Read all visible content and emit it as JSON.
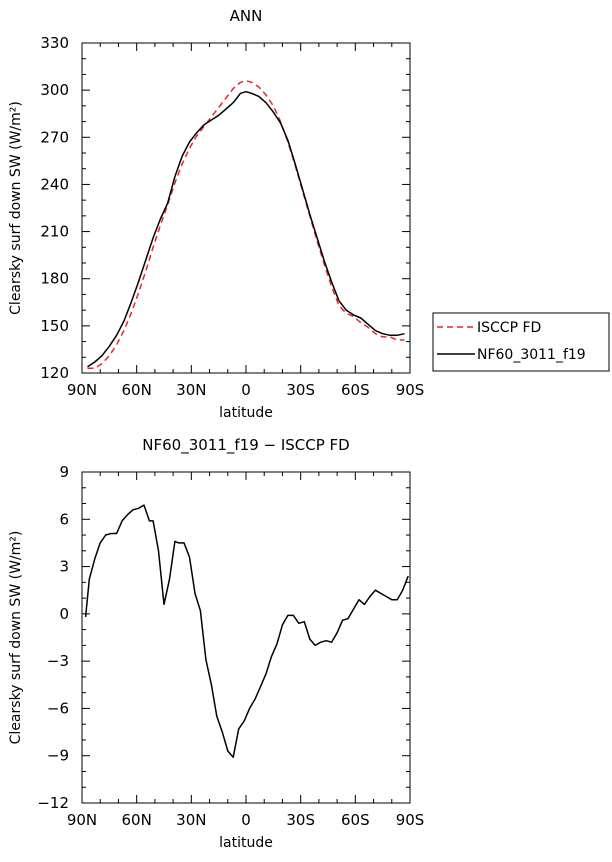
{
  "chart_data": [
    {
      "type": "line",
      "title": "ANN",
      "xlabel": "latitude",
      "ylabel": "Clearsky surf down SW (W/m²)",
      "xlim": [
        90,
        -90
      ],
      "ylim": [
        120,
        330
      ],
      "xticks": [
        90,
        60,
        30,
        0,
        -30,
        -60,
        -90
      ],
      "xtick_labels": [
        "90N",
        "60N",
        "30N",
        "0",
        "30S",
        "60S",
        "90S"
      ],
      "yticks": [
        120,
        150,
        180,
        210,
        240,
        270,
        300,
        330
      ],
      "ytick_labels": [
        "120",
        "150",
        "180",
        "210",
        "240",
        "270",
        "300",
        "330"
      ],
      "legend_position": "outside-right",
      "series": [
        {
          "name": "ISCCP FD",
          "color": "#e8262a",
          "dash": "dashed",
          "x": [
            87,
            83,
            79,
            75,
            71,
            67,
            63,
            59,
            55,
            51,
            47,
            43,
            39,
            35,
            31,
            27,
            23,
            19,
            15,
            11,
            7,
            3,
            0,
            -3,
            -7,
            -11,
            -15,
            -19,
            -23,
            -27,
            -31,
            -35,
            -39,
            -43,
            -47,
            -51,
            -55,
            -59,
            -63,
            -67,
            -71,
            -75,
            -79,
            -83,
            -87
          ],
          "y": [
            123,
            123,
            126,
            131,
            138,
            147,
            158,
            171,
            185,
            200,
            214,
            227,
            241,
            253,
            263,
            271,
            277,
            283,
            289,
            295,
            301,
            305,
            306,
            305,
            302,
            297,
            290,
            280,
            267,
            252,
            236,
            220,
            204,
            189,
            175,
            163,
            158,
            156,
            152,
            149,
            145,
            143,
            143,
            141,
            141
          ]
        },
        {
          "name": "NF60_3011_f19",
          "color": "#000000",
          "dash": "solid",
          "x": [
            87,
            83,
            79,
            75,
            71,
            67,
            63,
            59,
            55,
            51,
            47,
            43,
            39,
            35,
            31,
            27,
            23,
            19,
            15,
            11,
            7,
            3,
            0,
            -3,
            -7,
            -11,
            -15,
            -19,
            -23,
            -27,
            -31,
            -35,
            -39,
            -43,
            -47,
            -51,
            -55,
            -59,
            -63,
            -67,
            -71,
            -75,
            -79,
            -83,
            -87
          ],
          "y": [
            124,
            127,
            131,
            137,
            144,
            153,
            165,
            178,
            192,
            206,
            218,
            228,
            245,
            258,
            267,
            273,
            278,
            281,
            284,
            288,
            292,
            298,
            299,
            298,
            296,
            292,
            286,
            279,
            268,
            253,
            237,
            221,
            206,
            191,
            178,
            166,
            160,
            157,
            155,
            151,
            147,
            145,
            144,
            144,
            145
          ]
        }
      ]
    },
    {
      "type": "line",
      "title": "NF60_3011_f19 − ISCCP FD",
      "xlabel": "latitude",
      "ylabel": "Clearsky surf down SW (W/m²)",
      "xlim": [
        90,
        -90
      ],
      "ylim": [
        -12,
        9
      ],
      "xticks": [
        90,
        60,
        30,
        0,
        -30,
        -60,
        -90
      ],
      "xtick_labels": [
        "90N",
        "60N",
        "30N",
        "0",
        "30S",
        "60S",
        "90S"
      ],
      "yticks": [
        -12,
        -9,
        -6,
        -3,
        0,
        3,
        6,
        9
      ],
      "ytick_labels": [
        "−12",
        "−9",
        "−6",
        "−3",
        "0",
        "3",
        "6",
        "9"
      ],
      "series": [
        {
          "color": "#000000",
          "dash": "solid",
          "x": [
            88,
            86,
            83,
            80,
            77,
            74,
            71,
            68,
            65,
            62,
            59,
            56,
            53,
            51,
            48,
            45,
            42,
            39,
            37,
            34,
            31,
            28,
            25,
            22,
            19,
            16,
            13,
            10,
            7,
            4,
            1,
            -2,
            -5,
            -8,
            -11,
            -14,
            -17,
            -20,
            -23,
            -26,
            -29,
            -32,
            -35,
            -38,
            -41,
            -44,
            -47,
            -50,
            -53,
            -56,
            -59,
            -62,
            -65,
            -68,
            -71,
            -74,
            -77,
            -80,
            -83,
            -86,
            -89
          ],
          "y": [
            -0.2,
            2.2,
            3.5,
            4.5,
            5.0,
            5.1,
            5.1,
            5.9,
            6.3,
            6.6,
            6.7,
            6.9,
            5.9,
            5.9,
            4.0,
            0.6,
            2.2,
            4.6,
            4.5,
            4.5,
            3.6,
            1.3,
            0.2,
            -2.9,
            -4.5,
            -6.5,
            -7.5,
            -8.7,
            -9.1,
            -7.3,
            -6.8,
            -6.0,
            -5.4,
            -4.6,
            -3.8,
            -2.7,
            -1.9,
            -0.7,
            -0.1,
            -0.1,
            -0.6,
            -0.5,
            -1.6,
            -2.0,
            -1.8,
            -1.7,
            -1.8,
            -1.2,
            -0.4,
            -0.3,
            0.3,
            0.9,
            0.6,
            1.1,
            1.5,
            1.3,
            1.1,
            0.9,
            0.9,
            1.5,
            2.4
          ]
        }
      ]
    }
  ]
}
